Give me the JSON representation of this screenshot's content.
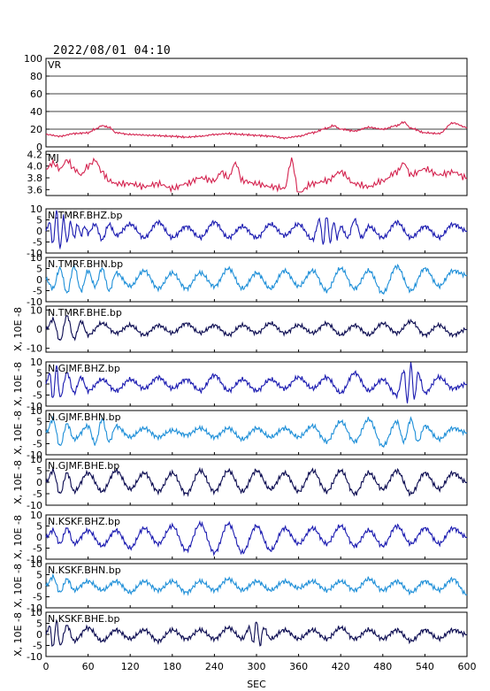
{
  "header": {
    "timestamp": "2022/08/01 04:10"
  },
  "chart_data": {
    "type": "line",
    "xlabel": "SEC",
    "xlim": [
      0,
      600
    ],
    "xticks": [
      0,
      60,
      120,
      180,
      240,
      300,
      360,
      420,
      480,
      540,
      600
    ],
    "panels": [
      {
        "name": "VR",
        "color": "#d4234f",
        "ylim": [
          0,
          100
        ],
        "yticks": [
          0,
          20,
          40,
          60,
          80,
          100
        ],
        "grid": true,
        "ylabel": "",
        "series": {
          "t": [
            0,
            20,
            40,
            60,
            70,
            80,
            90,
            100,
            120,
            150,
            180,
            200,
            220,
            240,
            260,
            280,
            300,
            320,
            340,
            360,
            380,
            400,
            410,
            420,
            440,
            460,
            480,
            500,
            510,
            520,
            540,
            560,
            580,
            600
          ],
          "v": [
            14,
            12,
            15,
            16,
            20,
            24,
            22,
            16,
            14,
            13,
            12,
            11,
            12,
            14,
            15,
            14,
            13,
            12,
            10,
            12,
            16,
            21,
            24,
            20,
            18,
            22,
            20,
            24,
            28,
            21,
            16,
            15,
            27,
            22
          ]
        }
      },
      {
        "name": "MJ",
        "color": "#d4234f",
        "ylim": [
          3.5,
          4.25
        ],
        "yticks": [
          3.6,
          3.8,
          4.0,
          4.2
        ],
        "ytick_labels": [
          "3.6",
          "3.8",
          "4.0",
          "4.2"
        ],
        "ylabel": "",
        "series": {
          "t": [
            0,
            10,
            20,
            30,
            40,
            50,
            60,
            70,
            80,
            90,
            100,
            120,
            140,
            160,
            180,
            200,
            220,
            240,
            250,
            260,
            270,
            280,
            300,
            320,
            340,
            350,
            360,
            380,
            400,
            420,
            440,
            460,
            480,
            500,
            510,
            520,
            540,
            560,
            580,
            600
          ],
          "v": [
            3.95,
            4.05,
            3.95,
            4.1,
            3.95,
            3.85,
            4.0,
            4.1,
            3.9,
            3.75,
            3.7,
            3.7,
            3.65,
            3.7,
            3.62,
            3.7,
            3.8,
            3.75,
            3.9,
            3.8,
            4.05,
            3.75,
            3.7,
            3.65,
            3.62,
            4.1,
            3.55,
            3.7,
            3.75,
            3.9,
            3.7,
            3.65,
            3.75,
            3.9,
            4.05,
            3.85,
            3.95,
            3.85,
            3.9,
            3.8
          ]
        }
      },
      {
        "name": "N.TMRF.BHZ.bp",
        "color": "#1a1ab0",
        "ylim": [
          -10,
          10
        ],
        "yticks": [
          -10,
          -5,
          0,
          5,
          10
        ],
        "ylabel": "",
        "series": {
          "t": [
            0,
            5,
            10,
            15,
            20,
            25,
            30,
            35,
            40,
            45,
            50,
            55,
            60,
            70,
            80,
            90,
            100,
            120,
            140,
            160,
            180,
            200,
            220,
            240,
            260,
            280,
            300,
            320,
            340,
            360,
            380,
            390,
            395,
            400,
            405,
            410,
            415,
            420,
            430,
            440,
            450,
            460,
            480,
            500,
            520,
            540,
            560,
            580,
            600
          ],
          "v": [
            0,
            4,
            -6,
            9,
            -8,
            6,
            -5,
            4,
            -3,
            3,
            -2,
            2,
            -1,
            3,
            -4,
            3,
            -2,
            3,
            -3,
            4,
            -3,
            2,
            -3,
            4,
            -3,
            2,
            -3,
            3,
            -2,
            3,
            -4,
            5,
            -6,
            7,
            -5,
            4,
            -3,
            2,
            -3,
            5,
            -3,
            2,
            -3,
            4,
            -3,
            2,
            -3,
            3,
            0
          ]
        }
      },
      {
        "name": "N.TMRF.BHN.bp",
        "color": "#1e8fd8",
        "ylim": [
          -10,
          10
        ],
        "yticks": [
          -10,
          -5,
          0,
          5,
          10
        ],
        "ylabel": "",
        "series": {
          "t": [
            0,
            10,
            20,
            30,
            40,
            50,
            60,
            70,
            80,
            90,
            100,
            120,
            140,
            160,
            180,
            200,
            220,
            240,
            260,
            280,
            300,
            320,
            340,
            360,
            380,
            400,
            420,
            440,
            460,
            480,
            500,
            520,
            540,
            560,
            580,
            600
          ],
          "v": [
            0,
            -4,
            5,
            -6,
            6,
            -5,
            4,
            -3,
            5,
            -5,
            3,
            -3,
            4,
            -4,
            3,
            -4,
            3,
            -3,
            5,
            -4,
            3,
            -4,
            4,
            -3,
            4,
            -5,
            5,
            -4,
            4,
            -6,
            6,
            -5,
            5,
            -3,
            4,
            2
          ]
        }
      },
      {
        "name": "N.TMRF.BHE.bp",
        "color": "#0a0a50",
        "ylim": [
          -12,
          12
        ],
        "yticks": [
          -10,
          0,
          10
        ],
        "ylabel": "X, 10E -8",
        "series": {
          "t": [
            0,
            10,
            20,
            30,
            40,
            50,
            60,
            80,
            100,
            120,
            140,
            160,
            180,
            200,
            220,
            240,
            260,
            280,
            300,
            320,
            340,
            360,
            380,
            400,
            420,
            440,
            460,
            480,
            500,
            520,
            540,
            560,
            580,
            600
          ],
          "v": [
            0,
            5,
            -6,
            7,
            -5,
            4,
            -3,
            3,
            -2,
            2,
            -3,
            2,
            -2,
            3,
            -2,
            2,
            -3,
            2,
            -2,
            3,
            -2,
            2,
            -2,
            3,
            -3,
            2,
            -3,
            3,
            -2,
            4,
            -3,
            2,
            -3,
            0
          ]
        }
      },
      {
        "name": "N.GJMF.BHZ.bp",
        "color": "#1a1ab0",
        "ylim": [
          -10,
          10
        ],
        "yticks": [
          -10,
          -5,
          0,
          5,
          10
        ],
        "ylabel": "X, 10E -8",
        "series": {
          "t": [
            0,
            5,
            10,
            15,
            20,
            30,
            40,
            50,
            60,
            80,
            100,
            120,
            140,
            160,
            180,
            200,
            220,
            240,
            260,
            280,
            300,
            320,
            340,
            360,
            380,
            400,
            420,
            440,
            460,
            480,
            500,
            510,
            515,
            520,
            525,
            530,
            540,
            560,
            580,
            600
          ],
          "v": [
            0,
            5,
            -7,
            8,
            -6,
            5,
            -4,
            3,
            -3,
            2,
            -3,
            2,
            -2,
            3,
            -2,
            2,
            -3,
            4,
            -3,
            2,
            -3,
            2,
            -2,
            3,
            -2,
            3,
            -4,
            5,
            -3,
            2,
            -5,
            6,
            -8,
            9,
            -7,
            5,
            -4,
            3,
            -2,
            0
          ]
        }
      },
      {
        "name": "N.GJMF.BHN.bp",
        "color": "#1e8fd8",
        "ylim": [
          -10,
          10
        ],
        "yticks": [
          -10,
          -5,
          0,
          5,
          10
        ],
        "ylabel": "X, 10E -8",
        "series": {
          "t": [
            0,
            10,
            20,
            30,
            40,
            60,
            70,
            80,
            90,
            100,
            120,
            140,
            160,
            180,
            200,
            220,
            240,
            260,
            280,
            300,
            320,
            340,
            360,
            380,
            400,
            420,
            440,
            460,
            480,
            500,
            510,
            520,
            530,
            540,
            560,
            580,
            600
          ],
          "v": [
            0,
            6,
            -6,
            4,
            -3,
            3,
            -5,
            6,
            -4,
            3,
            -2,
            2,
            -2,
            1,
            -1,
            2,
            -2,
            2,
            -3,
            2,
            -2,
            2,
            -2,
            3,
            -4,
            5,
            -4,
            6,
            -6,
            5,
            -4,
            6,
            -4,
            3,
            -3,
            2,
            0
          ]
        }
      },
      {
        "name": "N.GJMF.BHE.bp",
        "color": "#0a0a50",
        "ylim": [
          -10,
          10
        ],
        "yticks": [
          -10,
          -5,
          0,
          5,
          10
        ],
        "ylabel": "X, 10E -8",
        "series": {
          "t": [
            0,
            10,
            20,
            30,
            40,
            60,
            80,
            100,
            120,
            140,
            160,
            180,
            200,
            220,
            240,
            260,
            280,
            300,
            320,
            340,
            360,
            380,
            400,
            420,
            440,
            460,
            480,
            500,
            520,
            540,
            560,
            580,
            600
          ],
          "v": [
            0,
            5,
            -5,
            4,
            -4,
            4,
            -4,
            5,
            -3,
            4,
            -4,
            4,
            -5,
            5,
            -4,
            5,
            -4,
            5,
            -3,
            4,
            -4,
            5,
            -4,
            5,
            -5,
            4,
            -3,
            5,
            -5,
            4,
            -3,
            4,
            0
          ]
        }
      },
      {
        "name": "N.KSKF.BHZ.bp",
        "color": "#1a1ab0",
        "ylim": [
          -10,
          10
        ],
        "yticks": [
          -10,
          -5,
          0,
          5,
          10
        ],
        "ylabel": "X, 10E -8",
        "series": {
          "t": [
            0,
            10,
            20,
            30,
            40,
            60,
            80,
            100,
            120,
            140,
            160,
            180,
            200,
            220,
            240,
            260,
            280,
            300,
            320,
            340,
            360,
            380,
            400,
            420,
            440,
            460,
            480,
            500,
            520,
            540,
            560,
            580,
            600
          ],
          "v": [
            0,
            3,
            -3,
            4,
            -3,
            3,
            -4,
            3,
            -5,
            4,
            -3,
            5,
            -6,
            6,
            -7,
            6,
            -7,
            5,
            -6,
            4,
            -3,
            4,
            -3,
            5,
            -4,
            3,
            -4,
            5,
            -3,
            4,
            -3,
            4,
            0
          ]
        }
      },
      {
        "name": "N.KSKF.BHN.bp",
        "color": "#1e8fd8",
        "ylim": [
          -10,
          10
        ],
        "yticks": [
          -10,
          -5,
          0,
          5,
          10
        ],
        "ylabel": "X, 10E -8",
        "series": {
          "t": [
            0,
            10,
            20,
            30,
            40,
            60,
            80,
            100,
            120,
            140,
            160,
            180,
            200,
            220,
            240,
            260,
            280,
            300,
            320,
            340,
            360,
            380,
            400,
            420,
            440,
            460,
            480,
            500,
            520,
            540,
            560,
            580,
            600
          ],
          "v": [
            0,
            4,
            -3,
            3,
            -2,
            2,
            -2,
            2,
            -3,
            2,
            -2,
            2,
            -3,
            2,
            -2,
            3,
            -2,
            2,
            -2,
            2,
            -1,
            2,
            -2,
            2,
            -2,
            3,
            -2,
            2,
            -3,
            2,
            -2,
            3,
            -4
          ]
        }
      },
      {
        "name": "N.KSKF.BHE.bp",
        "color": "#0a0a50",
        "ylim": [
          -10,
          10
        ],
        "yticks": [
          -10,
          -5,
          0,
          5,
          10
        ],
        "ylabel": "X, 10E -8",
        "series": {
          "t": [
            0,
            5,
            10,
            15,
            20,
            30,
            40,
            60,
            80,
            100,
            120,
            140,
            160,
            180,
            200,
            220,
            240,
            260,
            280,
            290,
            295,
            300,
            305,
            310,
            320,
            340,
            360,
            380,
            400,
            420,
            440,
            460,
            480,
            500,
            520,
            540,
            560,
            580,
            600
          ],
          "v": [
            0,
            4,
            -6,
            6,
            -5,
            4,
            -3,
            3,
            -3,
            2,
            -2,
            2,
            -3,
            2,
            -2,
            2,
            -2,
            3,
            -2,
            3,
            -4,
            6,
            -5,
            3,
            -2,
            2,
            -2,
            2,
            -2,
            3,
            -2,
            2,
            -2,
            2,
            -3,
            2,
            -2,
            2,
            0
          ]
        }
      }
    ]
  }
}
